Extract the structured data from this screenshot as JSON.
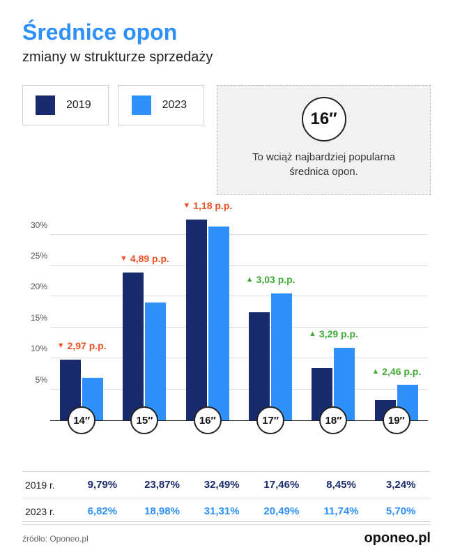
{
  "title": "Średnice opon",
  "subtitle": "zmiany w strukturze sprzedaży",
  "legend": [
    {
      "label": "2019",
      "color": "#1a2b6d"
    },
    {
      "label": "2023",
      "color": "#2e90fa"
    }
  ],
  "callout": {
    "badge": "16″",
    "text": "To wciąż najbardziej popularna średnica opon."
  },
  "chart": {
    "type": "grouped-bar",
    "ymax": 33,
    "yticks": [
      5,
      10,
      15,
      20,
      25,
      30
    ],
    "ytick_suffix": "%",
    "grid_color": "#dcdcdc",
    "background_color": "#ffffff",
    "categories": [
      "14″",
      "15″",
      "16″",
      "17″",
      "18″",
      "19″"
    ],
    "series": [
      {
        "name": "2019",
        "color": "#1a2b6d",
        "values": [
          9.79,
          23.87,
          32.49,
          17.46,
          8.45,
          3.24
        ]
      },
      {
        "name": "2023",
        "color": "#2e90fa",
        "values": [
          6.82,
          18.98,
          31.31,
          20.49,
          11.74,
          5.7
        ]
      }
    ],
    "deltas": [
      {
        "value": "2,97 p.p.",
        "direction": "down",
        "color": "#f04e23"
      },
      {
        "value": "4,89 p.p.",
        "direction": "down",
        "color": "#f04e23"
      },
      {
        "value": "1,18 p.p.",
        "direction": "down",
        "color": "#f04e23"
      },
      {
        "value": "3,03 p.p.",
        "direction": "up",
        "color": "#3faa35"
      },
      {
        "value": "3,29 p.p.",
        "direction": "up",
        "color": "#3faa35"
      },
      {
        "value": "2,46 p.p.",
        "direction": "up",
        "color": "#3faa35"
      }
    ]
  },
  "table": {
    "rows": [
      {
        "label": "2019 r.",
        "color": "#1a2b6d",
        "values": [
          "9,79%",
          "23,87%",
          "32,49%",
          "17,46%",
          "8,45%",
          "3,24%"
        ]
      },
      {
        "label": "2023 r.",
        "color": "#2e90fa",
        "values": [
          "6,82%",
          "18,98%",
          "31,31%",
          "20,49%",
          "11,74%",
          "5,70%"
        ]
      }
    ]
  },
  "source_label": "źródło: Oponeo.pl",
  "brand": "oponeo.pl"
}
